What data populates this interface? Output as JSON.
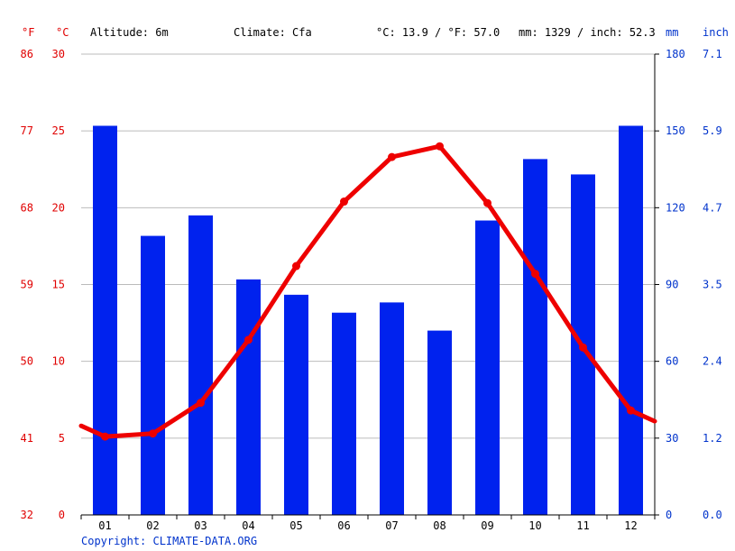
{
  "header": {
    "unit_f": "°F",
    "unit_c": "°C",
    "altitude": "Altitude: 6m",
    "climate": "Climate: Cfa",
    "temp_avg": "°C: 13.9 / °F: 57.0",
    "precip_total": "mm: 1329 / inch: 52.3",
    "unit_mm": "mm",
    "unit_inch": "inch"
  },
  "copyright": "Copyright: CLIMATE-DATA.ORG",
  "colors": {
    "bars": "#0022ee",
    "line": "#ee0000",
    "temp_text": "#e00000",
    "precip_text": "#0033cc",
    "grid": "#bbbbbb"
  },
  "chart_data": {
    "type": "bar+line",
    "categories": [
      "01",
      "02",
      "03",
      "04",
      "05",
      "06",
      "07",
      "08",
      "09",
      "10",
      "11",
      "12"
    ],
    "precipitation_mm": [
      152,
      109,
      117,
      92,
      86,
      79,
      83,
      72,
      115,
      139,
      133,
      152
    ],
    "temperature_c": [
      5.1,
      5.3,
      7.3,
      11.4,
      16.2,
      20.4,
      23.3,
      24.0,
      20.3,
      15.7,
      10.9,
      6.8
    ],
    "temp_edge_c": [
      5.8,
      6.1
    ],
    "yaxis_c_ticks": [
      0,
      5,
      10,
      15,
      20,
      25,
      30
    ],
    "yaxis_f_ticks": [
      32,
      41,
      50,
      59,
      68,
      77,
      86
    ],
    "yaxis_mm_ticks": [
      0,
      30,
      60,
      90,
      120,
      150,
      180
    ],
    "yaxis_inch_ticks": [
      "0.0",
      "1.2",
      "2.4",
      "3.5",
      "4.7",
      "5.9",
      "7.1"
    ],
    "ylim_c": [
      0,
      30
    ],
    "ylim_mm": [
      0,
      180
    ],
    "grid": true
  }
}
